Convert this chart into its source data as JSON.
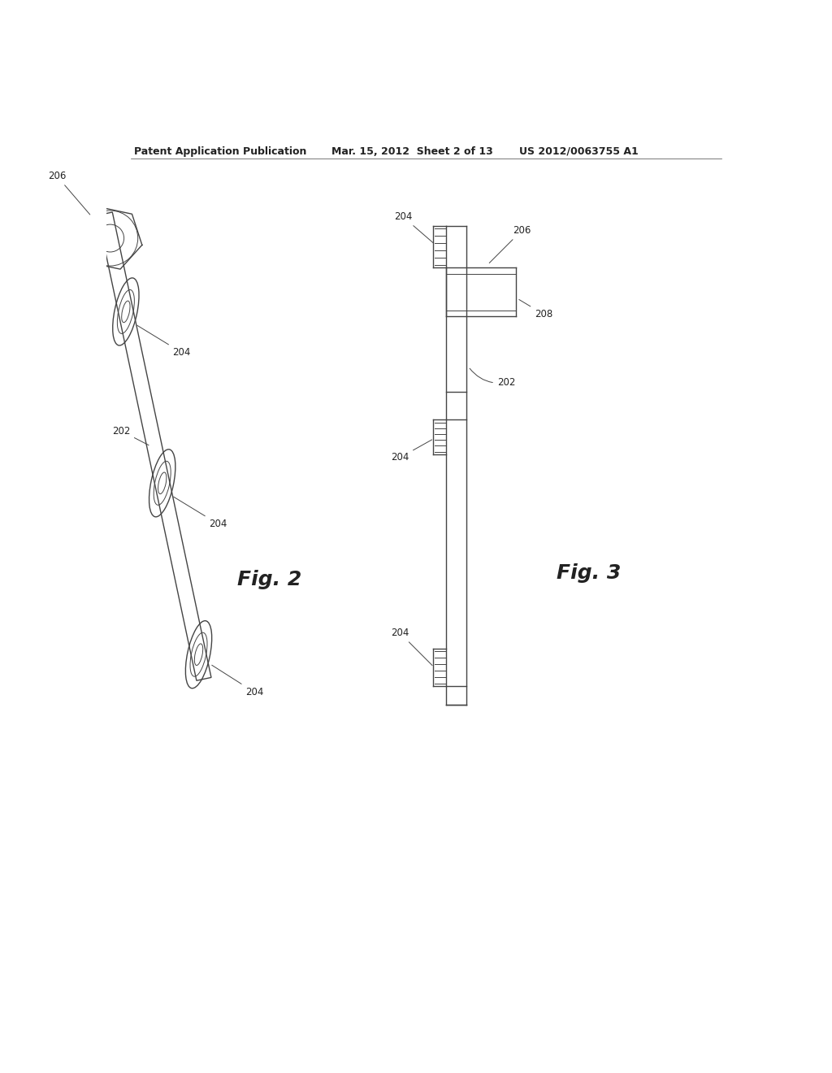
{
  "bg_color": "#ffffff",
  "header_left": "Patent Application Publication",
  "header_center": "Mar. 15, 2012  Sheet 2 of 13",
  "header_right": "US 2012/0063755 A1",
  "line_color": "#444444",
  "lw": 1.0,
  "lw_thin": 0.7,
  "fig2_label": "Fig. 2",
  "fig3_label": "Fig. 3"
}
